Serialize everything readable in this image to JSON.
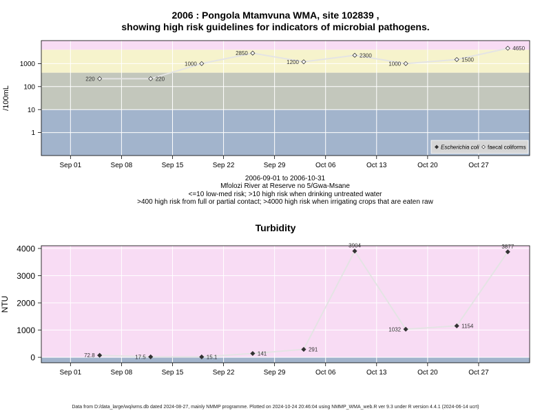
{
  "colors": {
    "band_pink": "#f8dcf4",
    "band_yellow": "#f6f3cc",
    "band_sage": "#c3c7bc",
    "band_blue": "#a2b4cc",
    "line": "#e4e4e4",
    "grid": "#ffffff",
    "marker": "#333333"
  },
  "top": {
    "title_line1": "2006 : Pongola Mtamvuna WMA, site 102839 ,",
    "title_line2": "showing high risk guidelines for indicators of microbial pathogens.",
    "caption_lines": [
      "2006-09-01 to 2006-10-31",
      "Mfolozi River at Reserve no 5/Gwa-Msane",
      "<=10 low-med risk; >10 high risk when drinking untreated water",
      ">400 high risk from full or partial contact; >4000 high risk when irrigating crops that are eaten raw"
    ]
  },
  "bottom": {
    "title": "Turbidity"
  },
  "footer": "Data from D:/data_large/wq/wms.db dated 2024-08-27, mainly NMMP programme. Plotted on 2024-10-24 20:46:04 using NMMP_WMA_web.R ver 9.3 under R version 4.4.1 (2024-06-14 ucrt)",
  "chart_data": [
    {
      "type": "line",
      "ylabel": "/100mL",
      "yscale": "log",
      "ylim": [
        0.1,
        10000
      ],
      "yticks": [
        1,
        10,
        100,
        1000
      ],
      "ytick_labels": [
        "1",
        "10",
        "100",
        "1000"
      ],
      "xlim": [
        "2006-08-28",
        "2006-11-03"
      ],
      "xticks": [
        "2006-09-01",
        "2006-09-08",
        "2006-09-15",
        "2006-09-22",
        "2006-09-29",
        "2006-10-06",
        "2006-10-13",
        "2006-10-20",
        "2006-10-27"
      ],
      "xtick_labels": [
        "Sep 01",
        "Sep 08",
        "Sep 15",
        "Sep 22",
        "Sep 29",
        "Oct 06",
        "Oct 13",
        "Oct 20",
        "Oct 27"
      ],
      "bands": [
        {
          "from": 4000,
          "to": 10000,
          "color": "band_pink"
        },
        {
          "from": 400,
          "to": 4000,
          "color": "band_yellow"
        },
        {
          "from": 10,
          "to": 400,
          "color": "band_sage"
        },
        {
          "from": 0.1,
          "to": 10,
          "color": "band_blue"
        }
      ],
      "series": [
        {
          "name": "faecal coliforms",
          "marker": "open-diamond",
          "points": [
            {
              "x": "2006-09-05",
              "y": 220,
              "label": "220",
              "side": "left"
            },
            {
              "x": "2006-09-12",
              "y": 220,
              "label": "220",
              "side": "right"
            },
            {
              "x": "2006-09-19",
              "y": 1000,
              "label": "1000",
              "side": "left"
            },
            {
              "x": "2006-09-26",
              "y": 2850,
              "label": "2850",
              "side": "left"
            },
            {
              "x": "2006-10-03",
              "y": 1200,
              "label": "1200",
              "side": "left"
            },
            {
              "x": "2006-10-10",
              "y": 2300,
              "label": "2300",
              "side": "right"
            },
            {
              "x": "2006-10-17",
              "y": 1000,
              "label": "1000",
              "side": "left"
            },
            {
              "x": "2006-10-24",
              "y": 1500,
              "label": "1500",
              "side": "right"
            },
            {
              "x": "2006-10-31",
              "y": 4650,
              "label": "4650",
              "side": "right"
            }
          ]
        }
      ],
      "legend": {
        "position": "bottom-right",
        "entries": [
          {
            "label": "Escherichia coli",
            "marker": "filled-diamond",
            "italic": true
          },
          {
            "label": "faecal coliforms",
            "marker": "open-diamond",
            "italic": false
          }
        ]
      }
    },
    {
      "type": "line",
      "title": "Turbidity",
      "ylabel": "NTU",
      "ylim": [
        -200,
        4100
      ],
      "yticks": [
        0,
        1000,
        2000,
        3000,
        4000
      ],
      "ytick_labels": [
        "0",
        "1000",
        "2000",
        "3000",
        "4000"
      ],
      "xlim": [
        "2006-08-28",
        "2006-11-03"
      ],
      "xticks": [
        "2006-09-01",
        "2006-09-08",
        "2006-09-15",
        "2006-09-22",
        "2006-09-29",
        "2006-10-06",
        "2006-10-13",
        "2006-10-20",
        "2006-10-27"
      ],
      "xtick_labels": [
        "Sep 01",
        "Sep 08",
        "Sep 15",
        "Sep 22",
        "Sep 29",
        "Oct 06",
        "Oct 13",
        "Oct 20",
        "Oct 27"
      ],
      "bands": [
        {
          "from": 0,
          "to": 4100,
          "color": "band_pink"
        },
        {
          "from": -200,
          "to": 0,
          "color": "band_blue"
        }
      ],
      "series": [
        {
          "name": "Turbidity",
          "marker": "filled-diamond",
          "points": [
            {
              "x": "2006-09-05",
              "y": 72.8,
              "label": "72.8",
              "side": "left"
            },
            {
              "x": "2006-09-12",
              "y": 17.5,
              "label": "17.5",
              "side": "left"
            },
            {
              "x": "2006-09-19",
              "y": 15.1,
              "label": "15.1",
              "side": "right"
            },
            {
              "x": "2006-09-26",
              "y": 141,
              "label": "141",
              "side": "right"
            },
            {
              "x": "2006-10-03",
              "y": 291,
              "label": "291",
              "side": "right"
            },
            {
              "x": "2006-10-10",
              "y": 3904,
              "label": "3904",
              "side": "above"
            },
            {
              "x": "2006-10-17",
              "y": 1032,
              "label": "1032",
              "side": "left"
            },
            {
              "x": "2006-10-24",
              "y": 1154,
              "label": "1154",
              "side": "right"
            },
            {
              "x": "2006-10-31",
              "y": 3877,
              "label": "3877",
              "side": "above"
            }
          ]
        }
      ]
    }
  ]
}
